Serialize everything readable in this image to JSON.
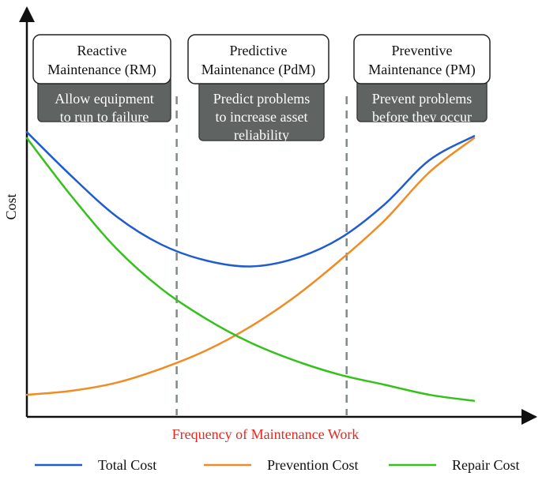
{
  "chart_data": {
    "type": "line",
    "title": "",
    "xlabel": "Frequency of Maintenance Work",
    "ylabel": "Cost",
    "xlim": [
      0,
      10
    ],
    "ylim": [
      0,
      10
    ],
    "grid": false,
    "legend_position": "bottom",
    "x": [
      0,
      1,
      2,
      3,
      4,
      5,
      6,
      7,
      8,
      9,
      10
    ],
    "series": [
      {
        "name": "Total Cost",
        "color": "#1f5bd1",
        "values": [
          7.1,
          6.0,
          5.0,
          4.3,
          3.9,
          3.75,
          3.95,
          4.45,
          5.3,
          6.4,
          7.0
        ]
      },
      {
        "name": "Prevention Cost",
        "color": "#f08c23",
        "values": [
          0.55,
          0.65,
          0.85,
          1.2,
          1.65,
          2.25,
          3.0,
          3.9,
          4.9,
          6.1,
          6.95
        ]
      },
      {
        "name": "Repair Cost",
        "color": "#33c11a",
        "values": [
          6.95,
          5.5,
          4.2,
          3.2,
          2.45,
          1.85,
          1.4,
          1.05,
          0.8,
          0.55,
          0.4
        ]
      }
    ],
    "dividers": [
      3.35,
      7.15
    ],
    "phases": [
      {
        "title_lines": [
          "Reactive",
          "Maintenance (RM)"
        ],
        "desc_lines": [
          "Allow equipment",
          "to run to failure"
        ]
      },
      {
        "title_lines": [
          "Predictive",
          "Maintenance (PdM)"
        ],
        "desc_lines": [
          "Predict problems",
          "to increase asset",
          "reliability"
        ]
      },
      {
        "title_lines": [
          "Preventive",
          "Maintenance (PM)"
        ],
        "desc_lines": [
          "Prevent problems",
          "before they occur"
        ]
      }
    ]
  }
}
